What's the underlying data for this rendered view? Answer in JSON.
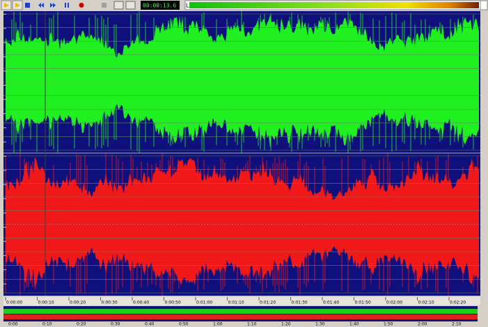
{
  "toolbar": {
    "time_display": "00:00:13.6"
  },
  "level_meter": {
    "label": "L"
  },
  "ruler": {
    "labels": [
      "0:00:00",
      "0:00:10",
      "0:00:20",
      "0:00:30",
      "0:00:40",
      "0:00:50",
      "0:01:00",
      "0:01:10",
      "0:01:20",
      "0:01:30",
      "0:01:40",
      "0:01:50",
      "0:02:00",
      "0:02:10",
      "0:02:20"
    ]
  },
  "overview_ruler": {
    "labels": [
      "0:00",
      "0:10",
      "0:20",
      "0:30",
      "0:40",
      "0:50",
      "1:00",
      "1:10",
      "1:20",
      "1:30",
      "1:40",
      "1:50",
      "2:00",
      "2:10"
    ]
  }
}
